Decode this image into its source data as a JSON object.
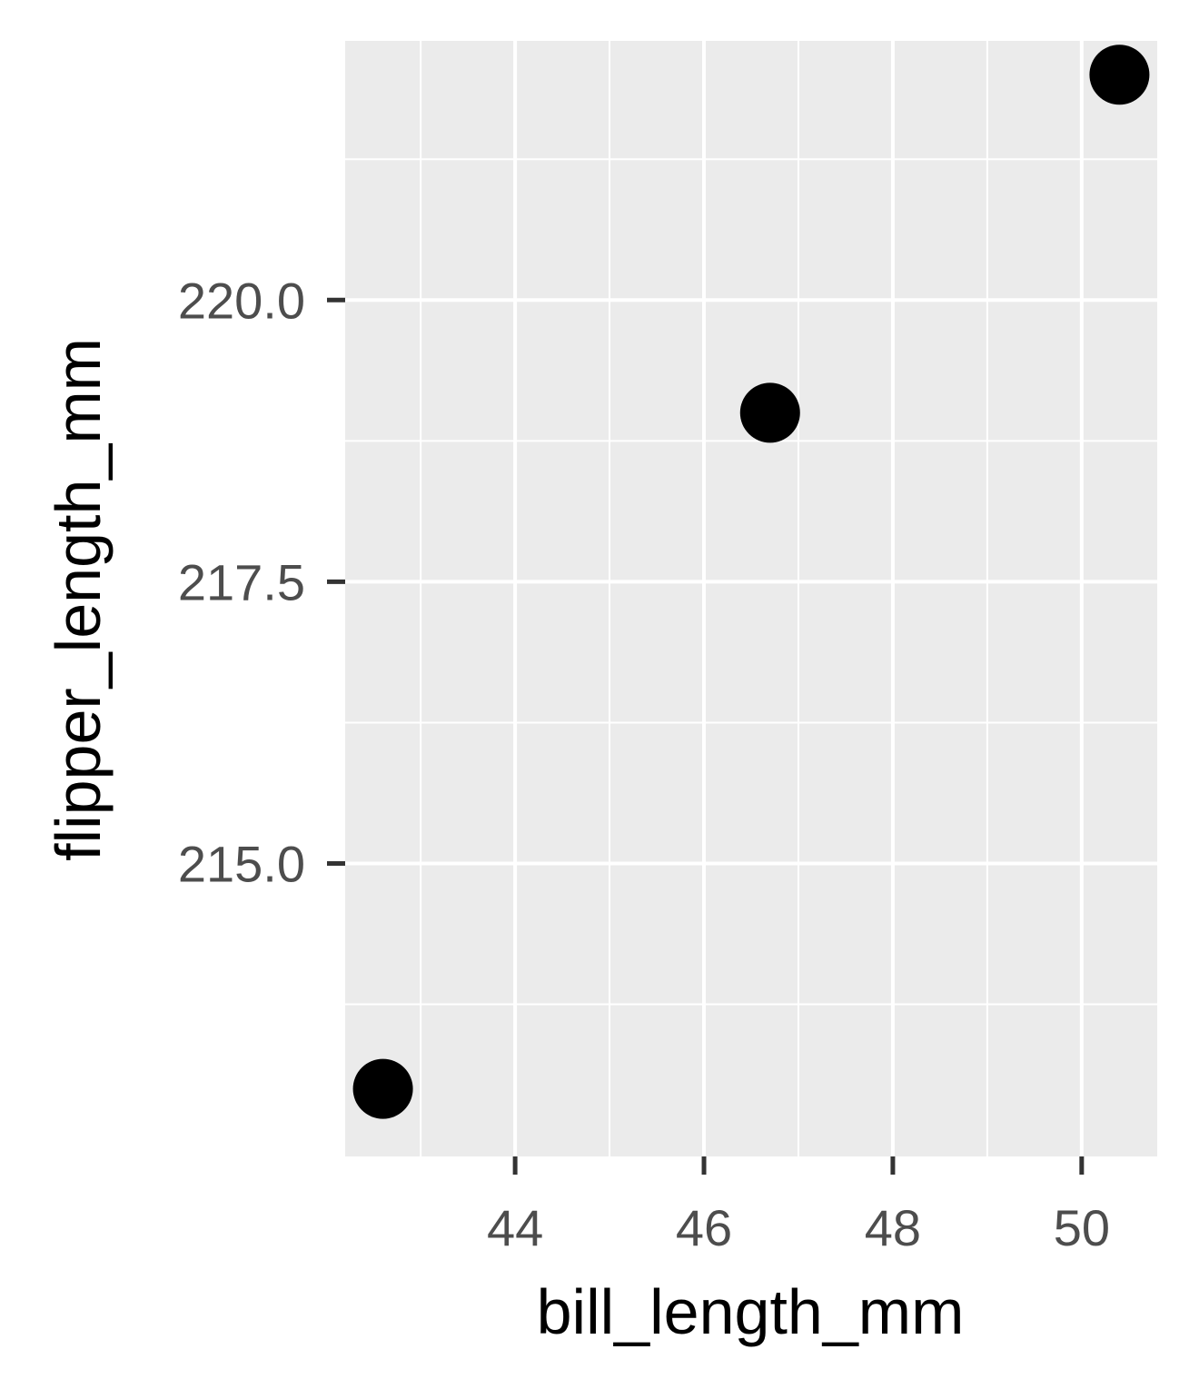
{
  "chart_data": {
    "type": "scatter",
    "xlabel": "bill_length_mm",
    "ylabel": "flipper_length_mm",
    "xlim": [
      42.2,
      50.8
    ],
    "ylim": [
      212.4,
      222.3
    ],
    "x_ticks": [
      44,
      46,
      48,
      50
    ],
    "x_minor": [
      43,
      45,
      47,
      49
    ],
    "y_ticks": [
      215.0,
      217.5,
      220.0
    ],
    "y_tick_labels": [
      "215.0",
      "217.5",
      "220.0"
    ],
    "y_minor": [
      213.75,
      216.25,
      218.75,
      221.25
    ],
    "grid": true,
    "points": [
      {
        "x": 42.6,
        "y": 213.0
      },
      {
        "x": 46.7,
        "y": 219.0
      },
      {
        "x": 50.4,
        "y": 222.0
      }
    ],
    "colors": {
      "panel": "#ebebeb",
      "grid": "#ffffff",
      "point": "#000000",
      "tick_label": "#4d4d4d",
      "tick_mark": "#333333"
    }
  }
}
